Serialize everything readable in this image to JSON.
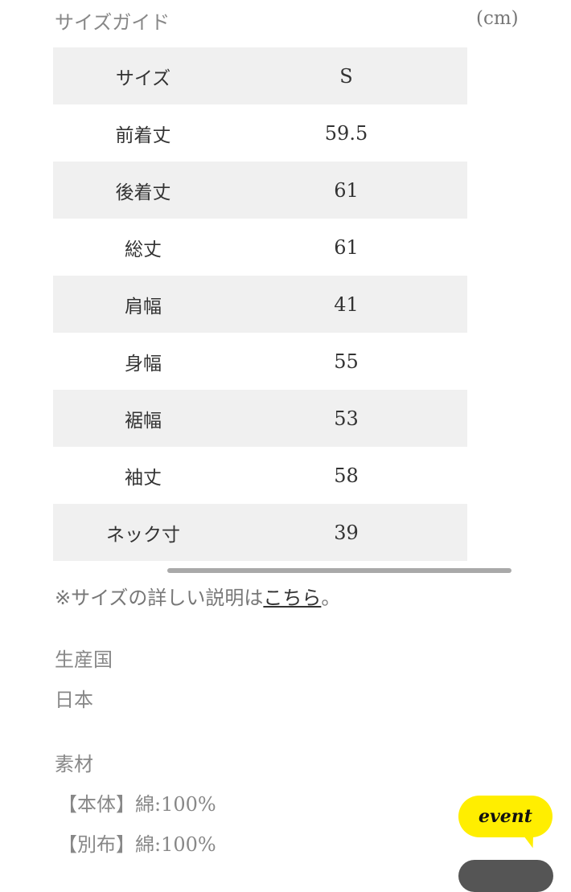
{
  "size_guide": {
    "title": "サイズガイド",
    "unit": "(cm)",
    "rows": [
      {
        "label": "サイズ",
        "value": "S"
      },
      {
        "label": "前着丈",
        "value": "59.5"
      },
      {
        "label": "後着丈",
        "value": "61"
      },
      {
        "label": "総丈",
        "value": "61"
      },
      {
        "label": "肩幅",
        "value": "41"
      },
      {
        "label": "身幅",
        "value": "55"
      },
      {
        "label": "裾幅",
        "value": "53"
      },
      {
        "label": "袖丈",
        "value": "58"
      },
      {
        "label": "ネック寸",
        "value": "39"
      }
    ]
  },
  "note": {
    "prefix": "※サイズの詳しい説明は",
    "link": "こちら",
    "suffix": "。"
  },
  "origin": {
    "label": "生産国",
    "value": "日本"
  },
  "material": {
    "label": "素材",
    "lines": [
      "【本体】綿:100%",
      "【別布】綿:100%"
    ]
  },
  "event_button": {
    "label": "event",
    "color": "#ffee00"
  }
}
